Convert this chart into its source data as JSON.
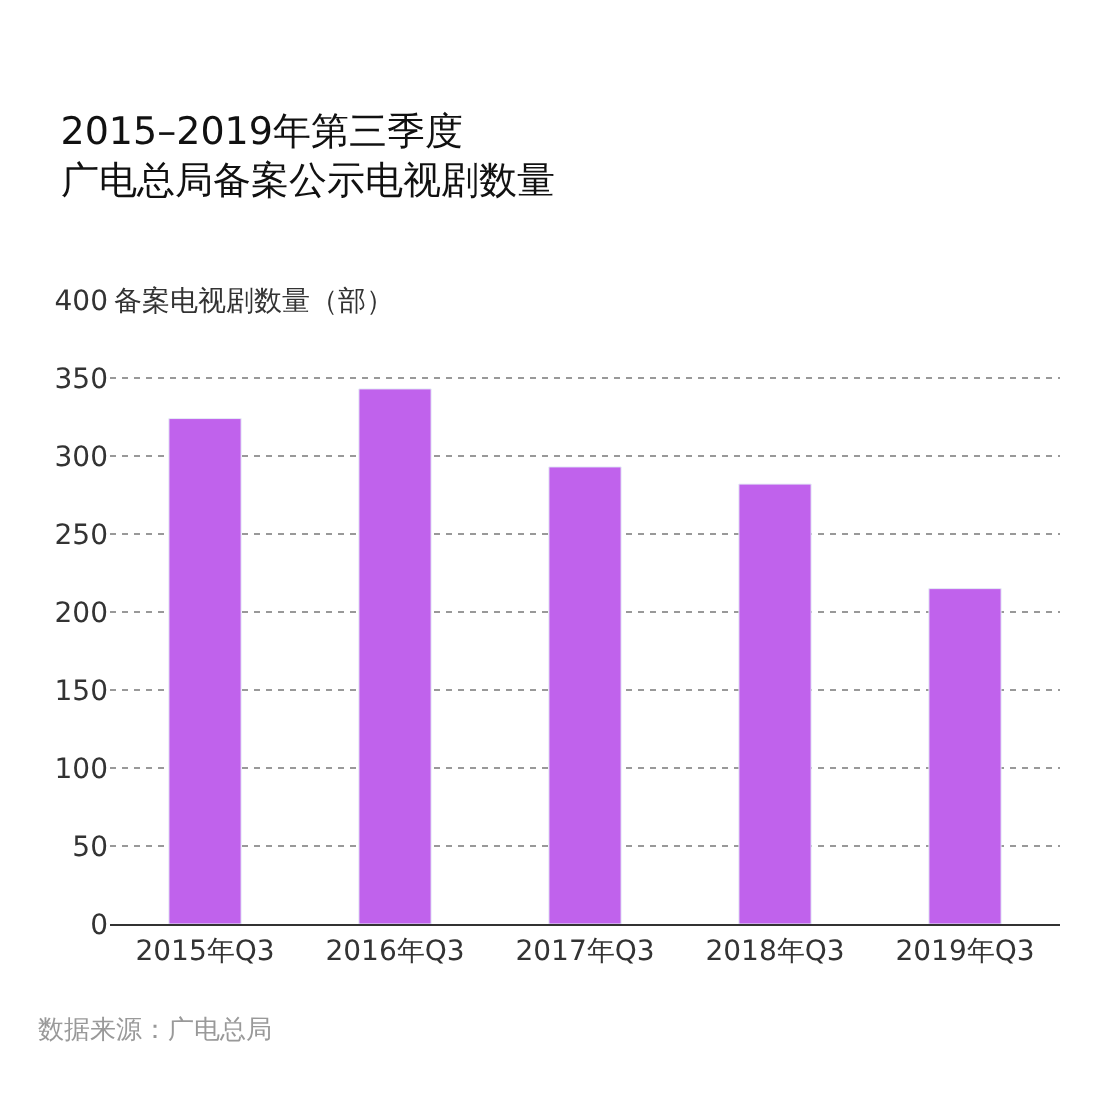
{
  "chart_data": {
    "type": "bar",
    "title": "2015–2019年第三季度",
    "subtitle": "广电总局备案公示电视剧数量",
    "ylabel": "备案电视剧数量（部）",
    "categories": [
      "2015年Q3",
      "2016年Q3",
      "2017年Q3",
      "2018年Q3",
      "2019年Q3"
    ],
    "values": [
      324,
      343,
      293,
      282,
      215
    ],
    "color": "#c062ec",
    "ylim": [
      0,
      400
    ],
    "yticks": [
      0,
      50,
      100,
      150,
      200,
      250,
      300,
      350,
      400
    ],
    "grid": "y",
    "annotations": [
      "数据来源：广电总局"
    ]
  }
}
